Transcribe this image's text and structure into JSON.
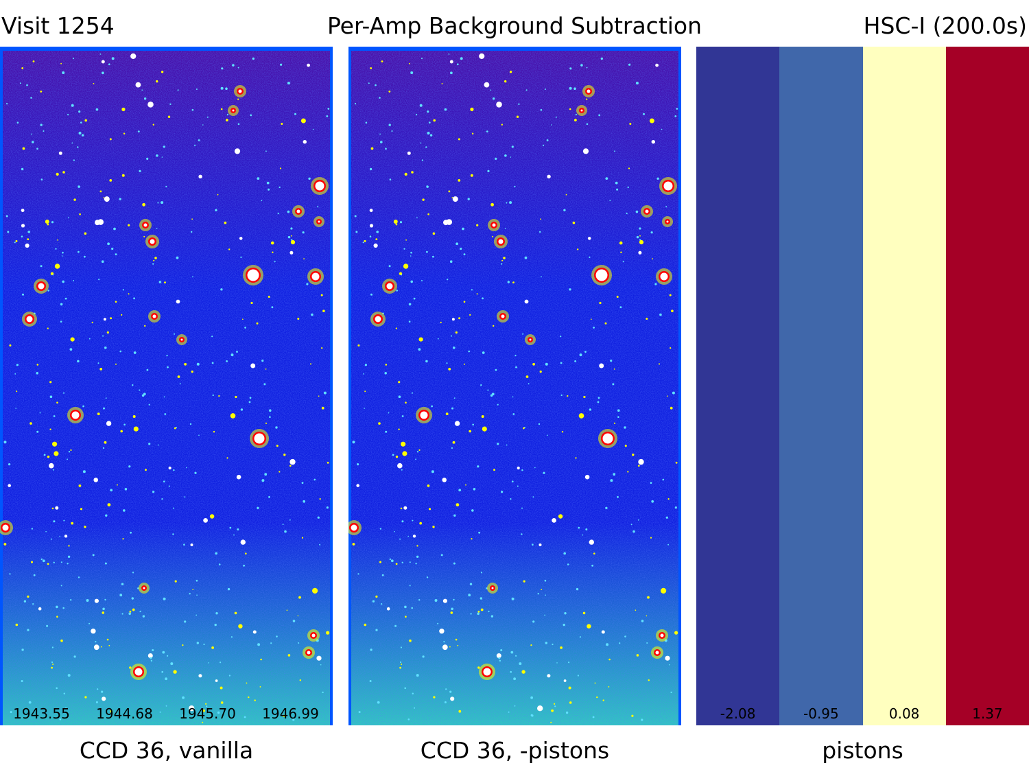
{
  "header": {
    "left": "Visit 1254",
    "center": "Per-Amp Background Subtraction",
    "right": "HSC-I (200.0s)"
  },
  "panels": [
    {
      "caption": "CCD 36, vanilla",
      "amp_values": [
        "1943.55",
        "1944.68",
        "1945.70",
        "1946.99"
      ]
    },
    {
      "caption": "CCD 36, -pistons",
      "amp_values": []
    },
    {
      "caption": "pistons",
      "amp_values": [
        "-2.08",
        "-0.95",
        "0.08",
        "1.37"
      ],
      "amp_colors": [
        "#313695",
        "#4067aa",
        "#ffffbf",
        "#a50026"
      ]
    }
  ],
  "colors": {
    "image_frame": "#0055ff",
    "sky_top": "#4a10a8",
    "sky_mid": "#1020e0",
    "sky_bottom": "#30c8c0",
    "star_core": "#ffffff",
    "star_ring": "#ff0000",
    "star_halo": "#ffff00"
  }
}
